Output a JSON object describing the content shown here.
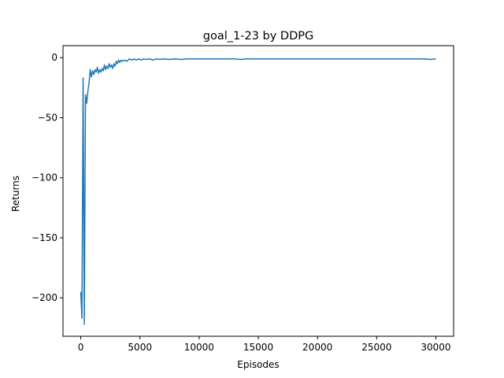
{
  "chart_data": {
    "type": "line",
    "title": "goal_1-23 by DDPG",
    "xlabel": "Episodes",
    "ylabel": "Returns",
    "xlim": [
      -1500,
      31500
    ],
    "ylim": [
      -232,
      10
    ],
    "xticks": [
      0,
      5000,
      10000,
      15000,
      20000,
      25000,
      30000
    ],
    "xtick_labels": [
      "0",
      "5000",
      "10000",
      "15000",
      "20000",
      "25000",
      "30000"
    ],
    "yticks": [
      0,
      -50,
      -100,
      -150,
      -200
    ],
    "ytick_labels": [
      "0",
      "−50",
      "−100",
      "−150",
      "−200"
    ],
    "grid": false,
    "series": [
      {
        "color": "#1f77b4",
        "x": [
          0,
          100,
          200,
          300,
          400,
          500,
          600,
          700,
          800,
          900,
          1000,
          1100,
          1200,
          1300,
          1400,
          1500,
          1600,
          1700,
          1800,
          1900,
          2000,
          2100,
          2200,
          2300,
          2400,
          2500,
          2600,
          2700,
          2800,
          2900,
          3000,
          3100,
          3200,
          3300,
          3400,
          3500,
          3700,
          3900,
          4100,
          4300,
          4500,
          4700,
          4900,
          5100,
          5300,
          5500,
          5800,
          6100,
          6400,
          6700,
          7000,
          7500,
          8000,
          8500,
          9000,
          9500,
          10000,
          11000,
          12000,
          13000,
          13500,
          14000,
          15000,
          16000,
          17000,
          18000,
          19000,
          20000,
          21000,
          22000,
          23000,
          24000,
          25000,
          26000,
          27000,
          28000,
          29000,
          29500,
          30000
        ],
        "y": [
          -195,
          -217,
          -17,
          -222,
          -31,
          -38,
          -28,
          -21,
          -10,
          -16,
          -11,
          -14,
          -10,
          -12,
          -8,
          -13,
          -10,
          -12,
          -9,
          -11,
          -6,
          -10,
          -7,
          -9,
          -5,
          -8,
          -6,
          -9,
          -5,
          -7,
          -3,
          -5,
          -2,
          -4,
          -2,
          -3,
          -2,
          -3,
          -1,
          -2,
          -1,
          -2,
          -1,
          -2,
          -1,
          -1.5,
          -1,
          -2,
          -1,
          -1.5,
          -1,
          -1.5,
          -1,
          -1.5,
          -1,
          -1,
          -1,
          -1,
          -1,
          -1,
          -1.5,
          -1,
          -1,
          -1,
          -1,
          -1,
          -1,
          -1,
          -1,
          -1,
          -1,
          -1,
          -1,
          -1,
          -1,
          -1,
          -1,
          -1.5,
          -1
        ]
      }
    ]
  }
}
